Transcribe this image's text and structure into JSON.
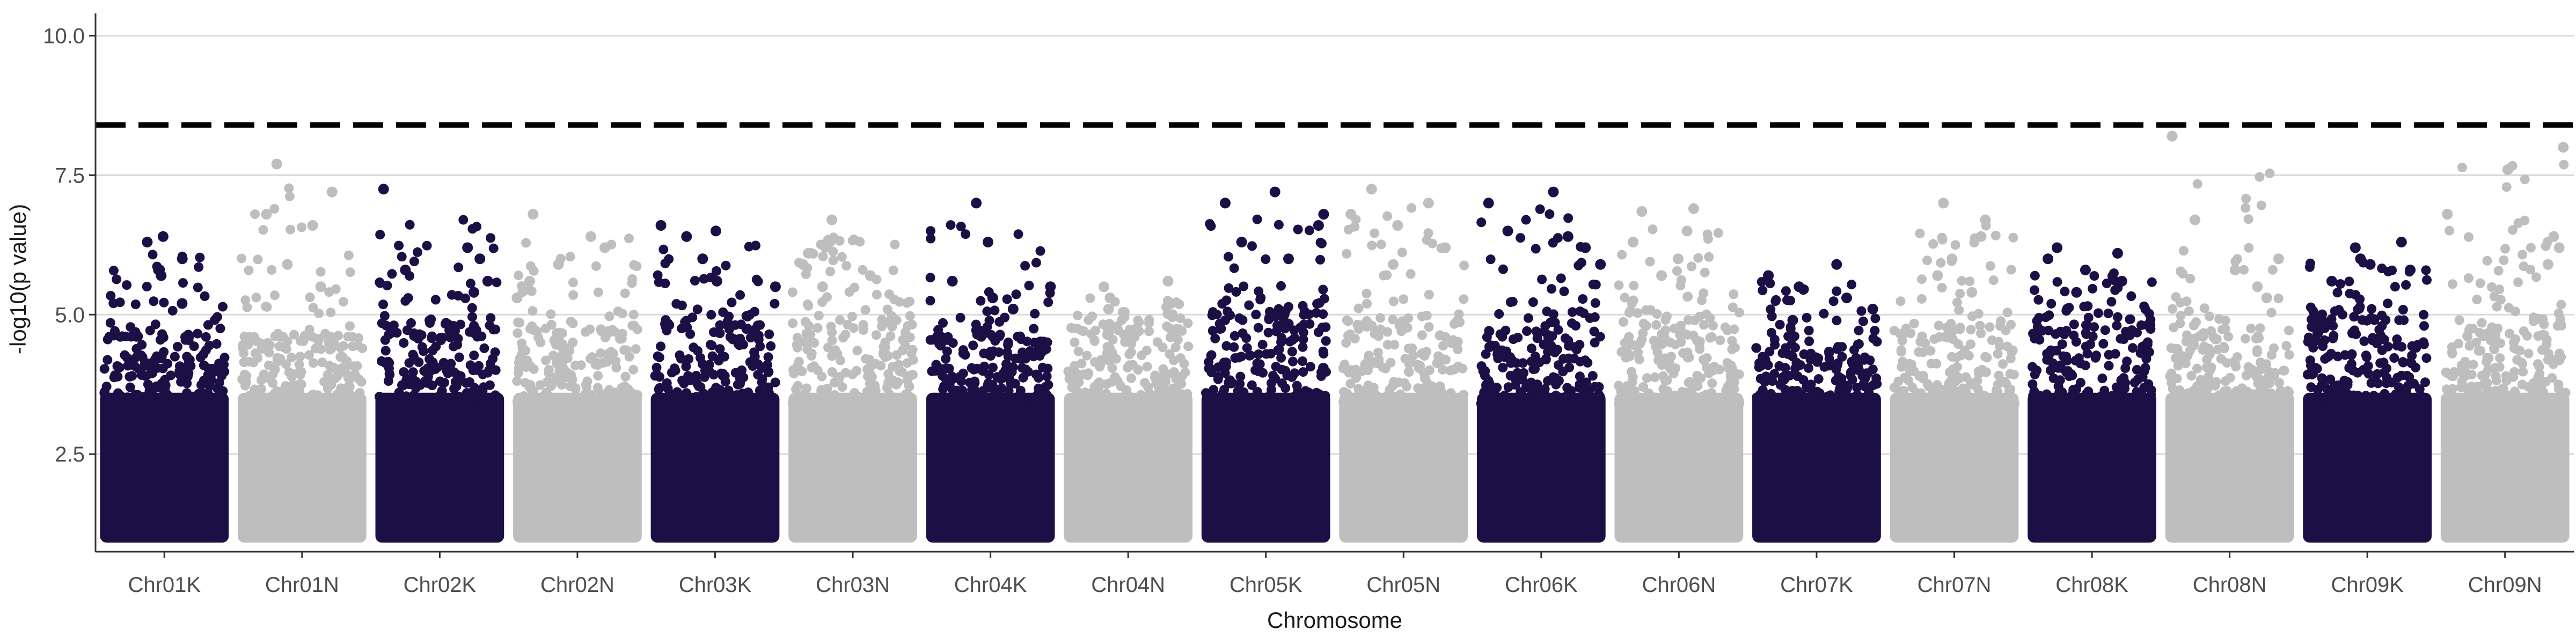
{
  "chart_data": {
    "type": "scatter",
    "title": "",
    "xlabel": "Chromosome",
    "ylabel": "-log10(p value)",
    "ylim": [
      0.75,
      10.4
    ],
    "yticks": [
      2.5,
      5.0,
      7.5,
      10.0
    ],
    "ytick_labels": [
      "2.5",
      "5.0",
      "7.5",
      "10.0"
    ],
    "grid": "horizontal major lines only",
    "legend": "none",
    "threshold": {
      "value": 8.4,
      "style": "dashed",
      "color": "#000000"
    },
    "colors": {
      "dark": "#1b0f45",
      "light": "#bebebe",
      "grid": "#d9d9d9",
      "axis": "#333333"
    },
    "categories": [
      "Chr01K",
      "Chr01N",
      "Chr02K",
      "Chr02N",
      "Chr03K",
      "Chr03N",
      "Chr04K",
      "Chr04N",
      "Chr05K",
      "Chr05N",
      "Chr06K",
      "Chr06N",
      "Chr07K",
      "Chr07N",
      "Chr08K",
      "Chr08N",
      "Chr09K",
      "Chr09N"
    ],
    "series": [
      {
        "category": "Chr01K",
        "color": "dark",
        "min": 1.0,
        "dense_max": 4.6,
        "peaks": [
          6.3,
          6.0,
          6.4,
          5.8,
          5.7,
          5.2
        ]
      },
      {
        "category": "Chr01N",
        "color": "light",
        "min": 1.0,
        "dense_max": 4.6,
        "peaks": [
          7.7,
          7.2,
          6.8,
          6.6,
          5.9,
          5.5
        ]
      },
      {
        "category": "Chr02K",
        "color": "dark",
        "min": 1.0,
        "dense_max": 4.8,
        "peaks": [
          7.25,
          6.2,
          6.0,
          5.8,
          5.6,
          5.4
        ]
      },
      {
        "category": "Chr02N",
        "color": "light",
        "min": 1.0,
        "dense_max": 4.7,
        "peaks": [
          6.8,
          6.4,
          6.2,
          5.9,
          5.6,
          5.3
        ]
      },
      {
        "category": "Chr03K",
        "color": "dark",
        "min": 1.0,
        "dense_max": 4.8,
        "peaks": [
          6.6,
          6.5,
          6.4,
          6.0,
          5.6,
          5.5
        ]
      },
      {
        "category": "Chr03N",
        "color": "light",
        "min": 1.0,
        "dense_max": 4.9,
        "peaks": [
          6.7,
          6.3,
          6.1,
          5.9,
          5.7,
          5.5
        ]
      },
      {
        "category": "Chr04K",
        "color": "dark",
        "min": 1.0,
        "dense_max": 4.6,
        "peaks": [
          7.0,
          6.3,
          5.6,
          5.5,
          5.3,
          5.1
        ]
      },
      {
        "category": "Chr04N",
        "color": "light",
        "min": 1.0,
        "dense_max": 4.7,
        "peaks": [
          5.6,
          5.5,
          5.3,
          5.2,
          5.1,
          5.0
        ]
      },
      {
        "category": "Chr05K",
        "color": "dark",
        "min": 1.0,
        "dense_max": 5.0,
        "peaks": [
          7.2,
          7.0,
          6.8,
          6.6,
          6.3,
          6.0
        ]
      },
      {
        "category": "Chr05N",
        "color": "light",
        "min": 1.0,
        "dense_max": 4.8,
        "peaks": [
          7.25,
          7.0,
          6.8,
          6.6,
          6.2,
          5.9
        ]
      },
      {
        "category": "Chr06K",
        "color": "dark",
        "min": 1.0,
        "dense_max": 4.7,
        "peaks": [
          7.2,
          7.0,
          6.5,
          6.4,
          6.2,
          5.9
        ]
      },
      {
        "category": "Chr06N",
        "color": "light",
        "min": 1.0,
        "dense_max": 4.8,
        "peaks": [
          6.9,
          6.85,
          6.5,
          6.3,
          6.0,
          5.7
        ]
      },
      {
        "category": "Chr07K",
        "color": "dark",
        "min": 1.0,
        "dense_max": 4.4,
        "peaks": [
          5.9,
          5.7,
          5.5,
          5.3,
          5.1,
          4.9
        ]
      },
      {
        "category": "Chr07N",
        "color": "light",
        "min": 1.0,
        "dense_max": 4.7,
        "peaks": [
          7.0,
          6.7,
          6.4,
          6.0,
          5.7,
          5.4
        ]
      },
      {
        "category": "Chr08K",
        "color": "dark",
        "min": 1.0,
        "dense_max": 4.8,
        "peaks": [
          6.2,
          6.1,
          6.0,
          5.8,
          5.6,
          5.4
        ]
      },
      {
        "category": "Chr08N",
        "color": "light",
        "min": 1.0,
        "dense_max": 4.6,
        "peaks": [
          8.2,
          6.7,
          6.0,
          5.8,
          5.5,
          5.3
        ]
      },
      {
        "category": "Chr09K",
        "color": "dark",
        "min": 1.0,
        "dense_max": 4.9,
        "peaks": [
          6.3,
          6.2,
          6.0,
          5.9,
          5.8,
          5.6
        ]
      },
      {
        "category": "Chr09N",
        "color": "light",
        "min": 1.0,
        "dense_max": 4.8,
        "peaks": [
          8.0,
          7.6,
          6.8,
          6.4,
          6.2,
          5.9
        ]
      }
    ]
  }
}
